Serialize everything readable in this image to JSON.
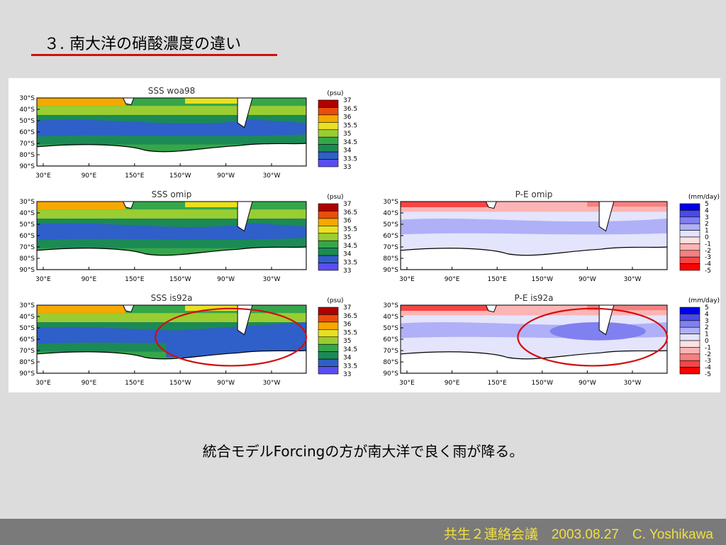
{
  "slide": {
    "title": "３. 南大洋の硝酸濃度の違い",
    "caption": "統合モデルForcingの方が南大洋で良く雨が降る。",
    "footer": "共生２連絡会議　2003.08.27　C. Yoshikawa"
  },
  "colors": {
    "sss_scale": [
      "#5a4ef0",
      "#2f5fc8",
      "#1c8a55",
      "#36a64a",
      "#9acd32",
      "#e8e020",
      "#f5a800",
      "#e84e0c",
      "#b00000"
    ],
    "pe_scale": [
      "#ff0000",
      "#f54545",
      "#f58080",
      "#fcb4b4",
      "#fde0e0",
      "#e4e4fc",
      "#b0b0f8",
      "#8080f0",
      "#4a4ae8",
      "#0000e8"
    ],
    "ellipse": "#d01010",
    "land": "#ffffff"
  },
  "chart_data": [
    {
      "type": "heatmap",
      "title": "SSS woa98",
      "colorbar_unit": "(psu)",
      "colorbar_levels": [
        "37",
        "36.5",
        "36",
        "35.5",
        "35",
        "34.5",
        "34",
        "33.5",
        "33"
      ],
      "x_ticks": [
        "30°E",
        "90°E",
        "150°E",
        "150°W",
        "90°W",
        "30°W"
      ],
      "y_ticks": [
        "30°S",
        "40°S",
        "50°S",
        "60°S",
        "70°S",
        "80°S",
        "90°S"
      ],
      "highlighted": false
    },
    {
      "type": "heatmap",
      "title": "SSS omip",
      "colorbar_unit": "(psu)",
      "colorbar_levels": [
        "37",
        "36.5",
        "36",
        "35.5",
        "35",
        "34.5",
        "34",
        "33.5",
        "33"
      ],
      "x_ticks": [
        "30°E",
        "90°E",
        "150°E",
        "150°W",
        "90°W",
        "30°W"
      ],
      "y_ticks": [
        "30°S",
        "40°S",
        "50°S",
        "60°S",
        "70°S",
        "80°S",
        "90°S"
      ],
      "highlighted": false
    },
    {
      "type": "heatmap",
      "title": "SSS is92a",
      "colorbar_unit": "(psu)",
      "colorbar_levels": [
        "37",
        "36.5",
        "36",
        "35.5",
        "35",
        "34.5",
        "34",
        "33.5",
        "33"
      ],
      "x_ticks": [
        "30°E",
        "90°E",
        "150°E",
        "150°W",
        "90°W",
        "30°W"
      ],
      "y_ticks": [
        "30°S",
        "40°S",
        "50°S",
        "60°S",
        "70°S",
        "80°S",
        "90°S"
      ],
      "highlighted": true
    },
    {
      "type": "heatmap",
      "title": "P-E omip",
      "colorbar_unit": "(mm/day)",
      "colorbar_levels": [
        "5",
        "4",
        "3",
        "2",
        "1",
        "0",
        "-1",
        "-2",
        "-3",
        "-4",
        "-5"
      ],
      "x_ticks": [
        "30°E",
        "90°E",
        "150°E",
        "150°W",
        "90°W",
        "30°W"
      ],
      "y_ticks": [
        "30°S",
        "40°S",
        "50°S",
        "60°S",
        "70°S",
        "80°S",
        "90°S"
      ],
      "highlighted": false
    },
    {
      "type": "heatmap",
      "title": "P-E is92a",
      "colorbar_unit": "(mm/day)",
      "colorbar_levels": [
        "5",
        "4",
        "3",
        "2",
        "1",
        "0",
        "-1",
        "-2",
        "-3",
        "-4",
        "-5"
      ],
      "x_ticks": [
        "30°E",
        "90°E",
        "150°E",
        "150°W",
        "90°W",
        "30°W"
      ],
      "y_ticks": [
        "30°S",
        "40°S",
        "50°S",
        "60°S",
        "70°S",
        "80°S",
        "90°S"
      ],
      "highlighted": true
    }
  ]
}
